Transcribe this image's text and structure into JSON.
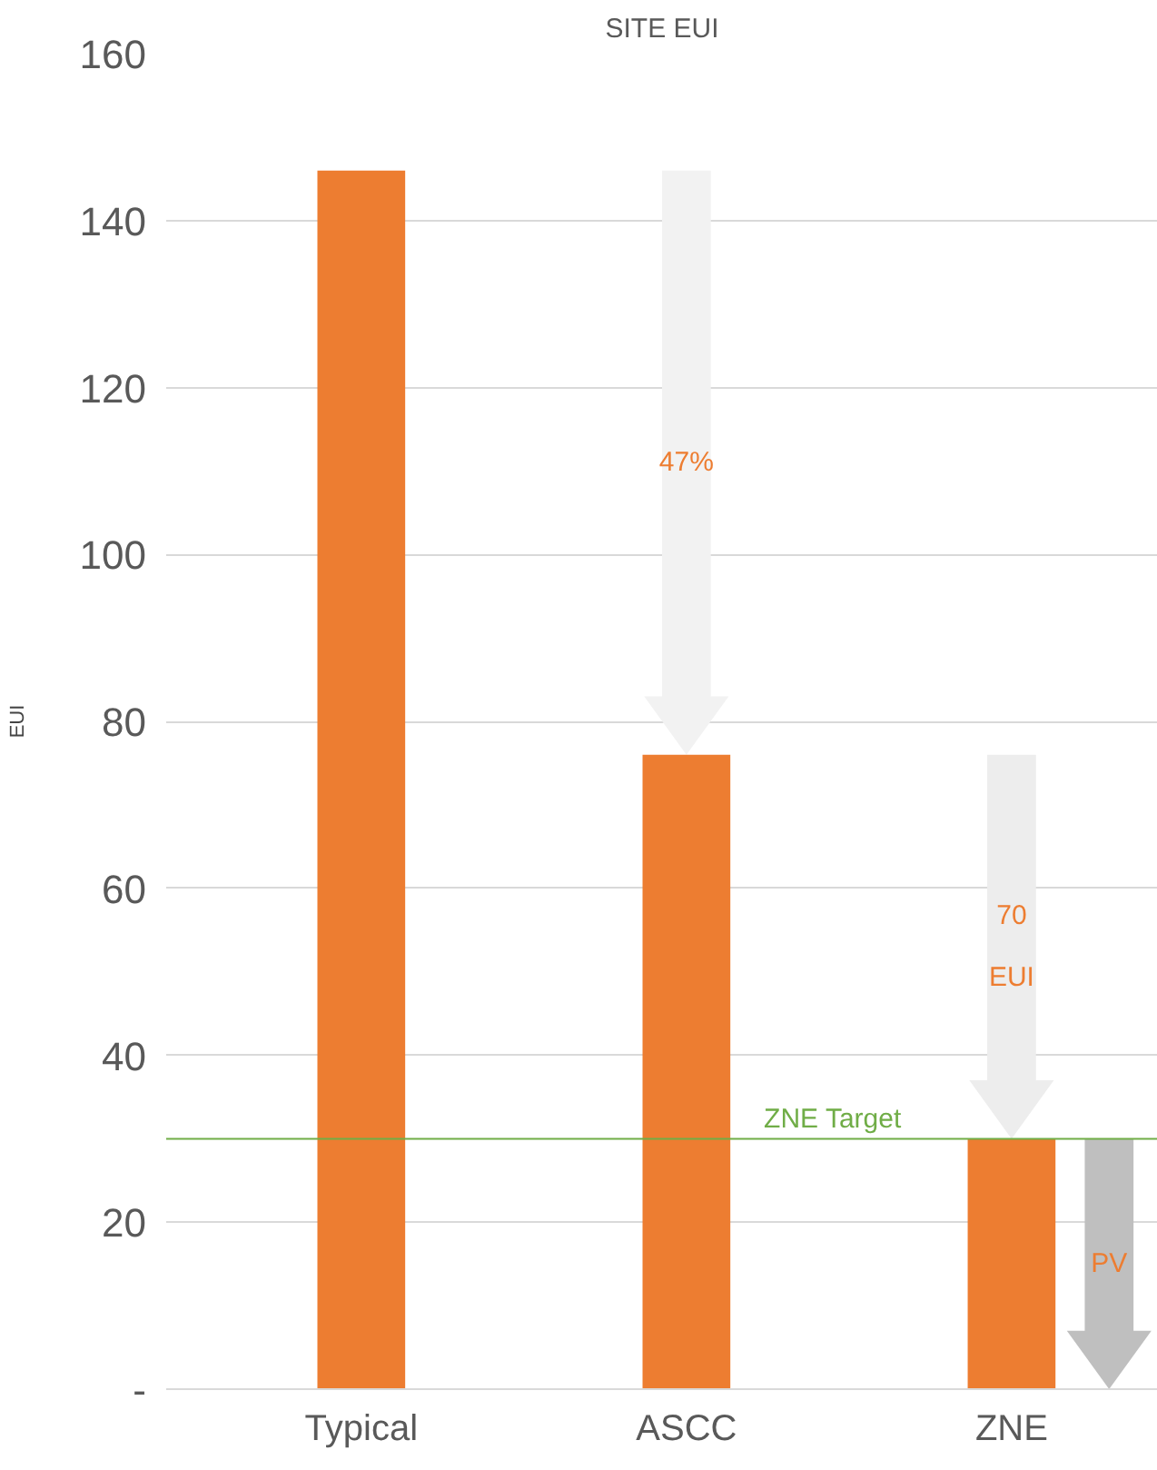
{
  "chart_data": {
    "type": "bar",
    "title": "SITE EUI",
    "ylabel": "EUI",
    "categories": [
      "Typical",
      "ASCC",
      "ZNE"
    ],
    "values": [
      146,
      76,
      30
    ],
    "color": "#ed7d31",
    "ylim": [
      0,
      160
    ],
    "yticks": [
      {
        "value": 0,
        "label": "-"
      },
      20,
      40,
      60,
      80,
      100,
      120,
      140,
      160
    ],
    "grid": "y",
    "ref_lines": [
      {
        "axis": "y",
        "value": 30,
        "label": "ZNE Target",
        "color": "#70ad47"
      }
    ],
    "annotations": [
      "47%",
      "70\nEUI",
      "PV"
    ]
  }
}
